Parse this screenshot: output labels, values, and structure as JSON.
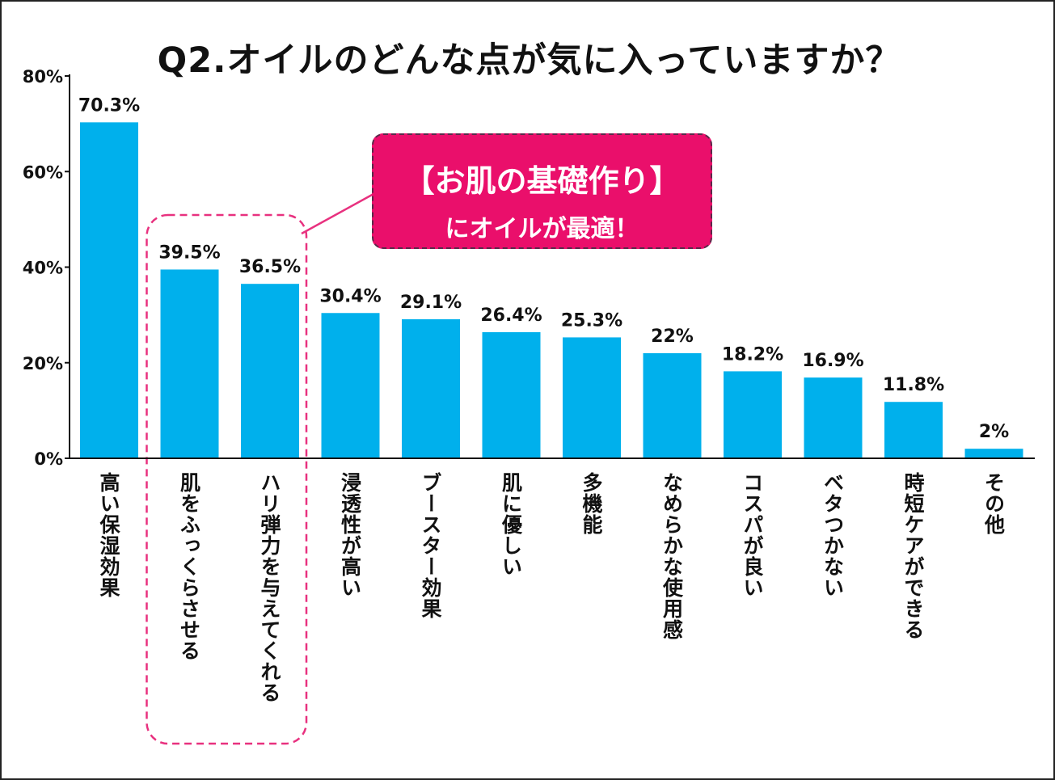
{
  "chart_data": {
    "type": "bar",
    "title": "Q2.オイルのどんな点が気に入っていますか？",
    "xlabel": "",
    "ylabel": "",
    "categories": [
      "高い保湿効果",
      "肌をふっくらさせる",
      "ハリ弾力を与えてくれる",
      "浸透性が高い",
      "ブースター効果",
      "肌に優しい",
      "多機能",
      "なめらかな使用感",
      "コスパが良い",
      "ベタつかない",
      "時短ケアができる",
      "その他"
    ],
    "values": [
      70.3,
      39.5,
      36.5,
      30.4,
      29.1,
      26.4,
      25.3,
      22,
      18.2,
      16.9,
      11.8,
      2
    ],
    "data_labels": [
      "70.3%",
      "39.5%",
      "36.5%",
      "30.4%",
      "29.1%",
      "26.4%",
      "25.3%",
      "22%",
      "18.2%",
      "16.9%",
      "11.8%",
      "2%"
    ],
    "ylim": [
      0,
      80
    ],
    "yticks": [
      0,
      20,
      40,
      60,
      80
    ],
    "ytick_labels": [
      "0%",
      "20%",
      "40%",
      "60%",
      "80%"
    ],
    "grid": false,
    "legend": "none",
    "bar_color": "#00b0ec",
    "highlight": {
      "categories": [
        "肌をふっくらさせる",
        "ハリ弾力を与えてくれる"
      ],
      "color": "#e8317f"
    }
  },
  "callout": {
    "line1": "【お肌の基礎作り】",
    "line2": "にオイルが最適！",
    "color": "#ea0f6b"
  }
}
